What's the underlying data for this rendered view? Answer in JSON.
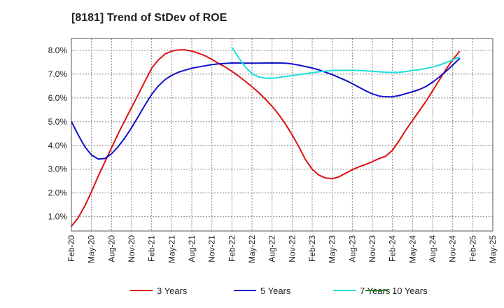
{
  "chart_data": {
    "type": "line",
    "title": "[8181]  Trend of StDev of ROE",
    "xlabel": "",
    "ylabel": "",
    "x_ticks": [
      "Feb-20",
      "May-20",
      "Aug-20",
      "Nov-20",
      "Feb-21",
      "May-21",
      "Aug-21",
      "Nov-21",
      "Feb-22",
      "May-22",
      "Aug-22",
      "Nov-22",
      "Feb-23",
      "May-23",
      "Aug-23",
      "Nov-23",
      "Feb-24",
      "May-24",
      "Aug-24",
      "Nov-24",
      "Feb-25",
      "May-25"
    ],
    "y_ticks": [
      "1.0%",
      "2.0%",
      "3.0%",
      "4.0%",
      "5.0%",
      "6.0%",
      "7.0%",
      "8.0%"
    ],
    "y_tick_values": [
      1,
      2,
      3,
      4,
      5,
      6,
      7,
      8
    ],
    "ylim": [
      0.4,
      8.5
    ],
    "x_range": [
      "Feb-20",
      "May-25"
    ],
    "grid": true,
    "legend_position": "bottom",
    "series": [
      {
        "name": "3 Years",
        "color": "#dd1111",
        "points": [
          [
            "Feb-20",
            0.6
          ],
          [
            "Mar-20",
            0.95
          ],
          [
            "Apr-20",
            1.45
          ],
          [
            "May-20",
            2.05
          ],
          [
            "Jun-20",
            2.7
          ],
          [
            "Jul-20",
            3.3
          ],
          [
            "Aug-20",
            3.9
          ],
          [
            "Sep-20",
            4.5
          ],
          [
            "Oct-20",
            5.05
          ],
          [
            "Nov-20",
            5.6
          ],
          [
            "Dec-20",
            6.15
          ],
          [
            "Jan-21",
            6.7
          ],
          [
            "Feb-21",
            7.25
          ],
          [
            "Mar-21",
            7.6
          ],
          [
            "Apr-21",
            7.85
          ],
          [
            "May-21",
            7.97
          ],
          [
            "Jun-21",
            8.02
          ],
          [
            "Jul-21",
            8.02
          ],
          [
            "Aug-21",
            7.97
          ],
          [
            "Sep-21",
            7.88
          ],
          [
            "Oct-21",
            7.77
          ],
          [
            "Nov-21",
            7.62
          ],
          [
            "Dec-21",
            7.45
          ],
          [
            "Jan-22",
            7.3
          ],
          [
            "Feb-22",
            7.12
          ],
          [
            "Mar-22",
            6.92
          ],
          [
            "Apr-22",
            6.7
          ],
          [
            "May-22",
            6.47
          ],
          [
            "Jun-22",
            6.22
          ],
          [
            "Jul-22",
            5.95
          ],
          [
            "Aug-22",
            5.65
          ],
          [
            "Sep-22",
            5.3
          ],
          [
            "Oct-22",
            4.9
          ],
          [
            "Nov-22",
            4.45
          ],
          [
            "Dec-22",
            3.95
          ],
          [
            "Jan-23",
            3.4
          ],
          [
            "Feb-23",
            3.0
          ],
          [
            "Mar-23",
            2.75
          ],
          [
            "Apr-23",
            2.63
          ],
          [
            "May-23",
            2.6
          ],
          [
            "Jun-23",
            2.68
          ],
          [
            "Jul-23",
            2.83
          ],
          [
            "Aug-23",
            2.98
          ],
          [
            "Sep-23",
            3.1
          ],
          [
            "Oct-23",
            3.2
          ],
          [
            "Nov-23",
            3.32
          ],
          [
            "Dec-23",
            3.45
          ],
          [
            "Jan-24",
            3.55
          ],
          [
            "Feb-24",
            3.8
          ],
          [
            "Mar-24",
            4.2
          ],
          [
            "Apr-24",
            4.65
          ],
          [
            "May-24",
            5.05
          ],
          [
            "Jun-24",
            5.45
          ],
          [
            "Jul-24",
            5.85
          ],
          [
            "Aug-24",
            6.3
          ],
          [
            "Sep-24",
            6.75
          ],
          [
            "Oct-24",
            7.2
          ],
          [
            "Nov-24",
            7.6
          ],
          [
            "Dec-24",
            7.95
          ]
        ]
      },
      {
        "name": "5 Years",
        "color": "#1111cc",
        "points": [
          [
            "Feb-20",
            5.0
          ],
          [
            "Mar-20",
            4.45
          ],
          [
            "Apr-20",
            3.95
          ],
          [
            "May-20",
            3.6
          ],
          [
            "Jun-20",
            3.43
          ],
          [
            "Jul-20",
            3.45
          ],
          [
            "Aug-20",
            3.65
          ],
          [
            "Sep-20",
            3.95
          ],
          [
            "Oct-20",
            4.32
          ],
          [
            "Nov-20",
            4.75
          ],
          [
            "Dec-20",
            5.22
          ],
          [
            "Jan-21",
            5.7
          ],
          [
            "Feb-21",
            6.15
          ],
          [
            "Mar-21",
            6.5
          ],
          [
            "Apr-21",
            6.77
          ],
          [
            "May-21",
            6.95
          ],
          [
            "Jun-21",
            7.08
          ],
          [
            "Jul-21",
            7.17
          ],
          [
            "Aug-21",
            7.25
          ],
          [
            "Sep-21",
            7.3
          ],
          [
            "Oct-21",
            7.35
          ],
          [
            "Nov-21",
            7.4
          ],
          [
            "Dec-21",
            7.43
          ],
          [
            "Jan-22",
            7.45
          ],
          [
            "Feb-22",
            7.47
          ],
          [
            "Mar-22",
            7.47
          ],
          [
            "Apr-22",
            7.46
          ],
          [
            "May-22",
            7.46
          ],
          [
            "Jun-22",
            7.46
          ],
          [
            "Jul-22",
            7.47
          ],
          [
            "Aug-22",
            7.47
          ],
          [
            "Sep-22",
            7.47
          ],
          [
            "Oct-22",
            7.46
          ],
          [
            "Nov-22",
            7.43
          ],
          [
            "Dec-22",
            7.38
          ],
          [
            "Jan-23",
            7.32
          ],
          [
            "Feb-23",
            7.26
          ],
          [
            "Mar-23",
            7.18
          ],
          [
            "Apr-23",
            7.08
          ],
          [
            "May-23",
            6.98
          ],
          [
            "Jun-23",
            6.86
          ],
          [
            "Jul-23",
            6.74
          ],
          [
            "Aug-23",
            6.6
          ],
          [
            "Sep-23",
            6.45
          ],
          [
            "Oct-23",
            6.3
          ],
          [
            "Nov-23",
            6.17
          ],
          [
            "Dec-23",
            6.08
          ],
          [
            "Jan-24",
            6.05
          ],
          [
            "Feb-24",
            6.05
          ],
          [
            "Mar-24",
            6.1
          ],
          [
            "Apr-24",
            6.18
          ],
          [
            "May-24",
            6.26
          ],
          [
            "Jun-24",
            6.35
          ],
          [
            "Jul-24",
            6.48
          ],
          [
            "Aug-24",
            6.66
          ],
          [
            "Sep-24",
            6.88
          ],
          [
            "Oct-24",
            7.12
          ],
          [
            "Nov-24",
            7.38
          ],
          [
            "Dec-24",
            7.65
          ]
        ]
      },
      {
        "name": "7 Years",
        "color": "#22dddd",
        "points": [
          [
            "Feb-22",
            8.12
          ],
          [
            "Mar-22",
            7.7
          ],
          [
            "Apr-22",
            7.3
          ],
          [
            "May-22",
            7.02
          ],
          [
            "Jun-22",
            6.88
          ],
          [
            "Jul-22",
            6.83
          ],
          [
            "Aug-22",
            6.83
          ],
          [
            "Sep-22",
            6.86
          ],
          [
            "Oct-22",
            6.9
          ],
          [
            "Nov-22",
            6.94
          ],
          [
            "Dec-22",
            6.98
          ],
          [
            "Jan-23",
            7.02
          ],
          [
            "Feb-23",
            7.06
          ],
          [
            "Mar-23",
            7.1
          ],
          [
            "Apr-23",
            7.13
          ],
          [
            "May-23",
            7.15
          ],
          [
            "Jun-23",
            7.16
          ],
          [
            "Jul-23",
            7.16
          ],
          [
            "Aug-23",
            7.16
          ],
          [
            "Sep-23",
            7.15
          ],
          [
            "Oct-23",
            7.14
          ],
          [
            "Nov-23",
            7.12
          ],
          [
            "Dec-23",
            7.1
          ],
          [
            "Jan-24",
            7.08
          ],
          [
            "Feb-24",
            7.07
          ],
          [
            "Mar-24",
            7.08
          ],
          [
            "Apr-24",
            7.11
          ],
          [
            "May-24",
            7.15
          ],
          [
            "Jun-24",
            7.19
          ],
          [
            "Jul-24",
            7.24
          ],
          [
            "Aug-24",
            7.3
          ],
          [
            "Sep-24",
            7.38
          ],
          [
            "Oct-24",
            7.48
          ],
          [
            "Nov-24",
            7.6
          ],
          [
            "Dec-24",
            7.72
          ]
        ]
      },
      {
        "name": "10 Years",
        "color": "#228822",
        "points": []
      }
    ]
  }
}
